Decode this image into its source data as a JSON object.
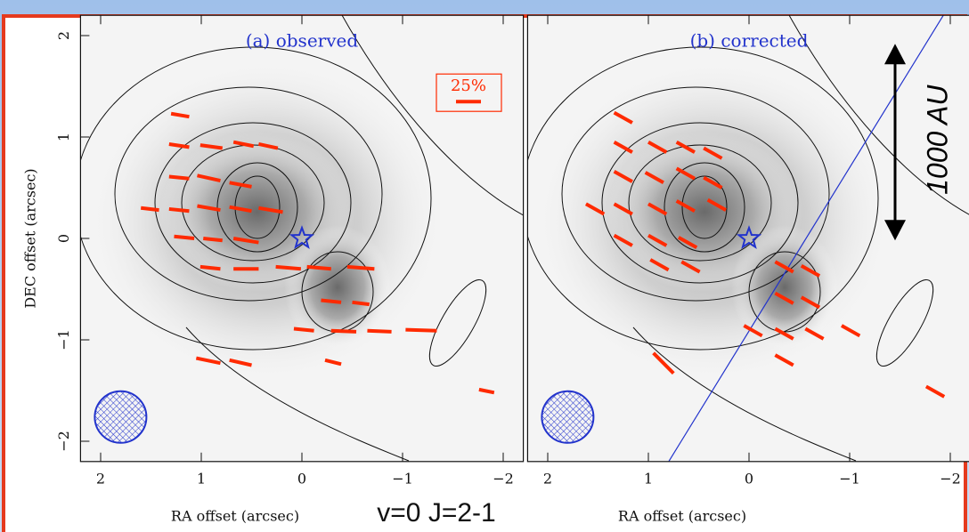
{
  "chart_data": [
    {
      "type": "vector-map",
      "title": "(a) observed",
      "x_label": "RA offset (arcsec)",
      "y_label": "DEC offset (arcsec)",
      "xlim": [
        2.2,
        -2.2
      ],
      "ylim": [
        -2.2,
        2.2
      ],
      "xticks": [
        2,
        1,
        0,
        {
          "value": -1,
          "label": "−1"
        },
        {
          "value": -2,
          "label": "−2"
        }
      ],
      "yticks": [
        {
          "value": -2,
          "label": "−2"
        },
        {
          "value": -1,
          "label": "−1"
        },
        0,
        1,
        2
      ],
      "color": "#ff2a00",
      "scale_label": "25%",
      "vectors": [
        [
          1.3,
          1.23,
          1.12,
          1.2
        ],
        [
          1.32,
          0.93,
          1.12,
          0.9
        ],
        [
          1.01,
          0.92,
          0.79,
          0.89
        ],
        [
          0.68,
          0.95,
          0.48,
          0.91
        ],
        [
          0.43,
          0.93,
          0.24,
          0.89
        ],
        [
          1.32,
          0.61,
          1.12,
          0.59
        ],
        [
          1.04,
          0.62,
          0.81,
          0.57
        ],
        [
          0.72,
          0.55,
          0.5,
          0.51
        ],
        [
          1.6,
          0.3,
          1.42,
          0.28
        ],
        [
          1.32,
          0.29,
          1.12,
          0.27
        ],
        [
          1.04,
          0.32,
          0.81,
          0.28
        ],
        [
          0.72,
          0.31,
          0.5,
          0.27
        ],
        [
          0.43,
          0.3,
          0.19,
          0.26
        ],
        [
          1.27,
          0.02,
          1.07,
          0.0
        ],
        [
          0.98,
          0.0,
          0.79,
          -0.02
        ],
        [
          0.68,
          0.0,
          0.43,
          -0.04
        ],
        [
          1.01,
          -0.28,
          0.81,
          -0.3
        ],
        [
          0.68,
          -0.3,
          0.43,
          -0.3
        ],
        [
          0.26,
          -0.28,
          0.01,
          -0.3
        ],
        [
          -0.05,
          -0.28,
          -0.29,
          -0.3
        ],
        [
          -0.45,
          -0.28,
          -0.72,
          -0.3
        ],
        [
          -0.19,
          -0.61,
          -0.39,
          -0.63
        ],
        [
          -0.5,
          -0.63,
          -0.67,
          -0.65
        ],
        [
          0.08,
          -0.89,
          -0.12,
          -0.91
        ],
        [
          -0.29,
          -0.91,
          -0.54,
          -0.92
        ],
        [
          -0.65,
          -0.91,
          -0.89,
          -0.92
        ],
        [
          -1.03,
          -0.9,
          -1.34,
          -0.91
        ],
        [
          1.05,
          -1.18,
          0.81,
          -1.23
        ],
        [
          0.72,
          -1.2,
          0.5,
          -1.25
        ],
        [
          -0.23,
          -1.2,
          -0.39,
          -1.24
        ],
        [
          -1.76,
          -1.49,
          -1.91,
          -1.52
        ]
      ]
    },
    {
      "type": "vector-map",
      "title": "(b) corrected",
      "x_label": "RA offset (arcsec)",
      "xlim": [
        2.2,
        -2.2
      ],
      "ylim": [
        -2.2,
        2.2
      ],
      "xticks": [
        2,
        1,
        0,
        {
          "value": -1,
          "label": "−1"
        },
        {
          "value": -2,
          "label": "−2"
        }
      ],
      "color": "#ff2a00",
      "annotation": "1000 AU",
      "vectors": [
        [
          1.34,
          1.24,
          1.16,
          1.14
        ],
        [
          1.34,
          0.95,
          1.16,
          0.85
        ],
        [
          1.0,
          0.95,
          0.82,
          0.85
        ],
        [
          0.72,
          0.95,
          0.54,
          0.85
        ],
        [
          0.45,
          0.89,
          0.27,
          0.79
        ],
        [
          1.34,
          0.66,
          1.16,
          0.56
        ],
        [
          1.03,
          0.65,
          0.85,
          0.55
        ],
        [
          0.72,
          0.69,
          0.54,
          0.59
        ],
        [
          0.45,
          0.6,
          0.27,
          0.5
        ],
        [
          1.62,
          0.34,
          1.44,
          0.24
        ],
        [
          1.34,
          0.34,
          1.16,
          0.24
        ],
        [
          1.0,
          0.34,
          0.82,
          0.24
        ],
        [
          0.72,
          0.37,
          0.54,
          0.27
        ],
        [
          0.41,
          0.38,
          0.23,
          0.28
        ],
        [
          1.34,
          0.03,
          1.16,
          -0.07
        ],
        [
          1.0,
          0.03,
          0.82,
          -0.07
        ],
        [
          0.7,
          0.01,
          0.52,
          -0.09
        ],
        [
          0.98,
          -0.21,
          0.8,
          -0.31
        ],
        [
          0.67,
          -0.23,
          0.49,
          -0.33
        ],
        [
          -0.26,
          -0.23,
          -0.44,
          -0.33
        ],
        [
          -0.52,
          -0.27,
          -0.7,
          -0.37
        ],
        [
          -0.26,
          -0.54,
          -0.44,
          -0.64
        ],
        [
          -0.52,
          -0.58,
          -0.7,
          -0.68
        ],
        [
          0.05,
          -0.86,
          -0.13,
          -0.96
        ],
        [
          -0.26,
          -0.89,
          -0.44,
          -0.99
        ],
        [
          -0.56,
          -0.89,
          -0.74,
          -0.99
        ],
        [
          -0.92,
          -0.86,
          -1.1,
          -0.96
        ],
        [
          -0.26,
          -1.15,
          -0.44,
          -1.25
        ],
        [
          0.95,
          -1.13,
          0.75,
          -1.33
        ],
        [
          -1.76,
          -1.46,
          -1.94,
          -1.56
        ]
      ]
    }
  ],
  "caption": "v=0 J=2-1"
}
